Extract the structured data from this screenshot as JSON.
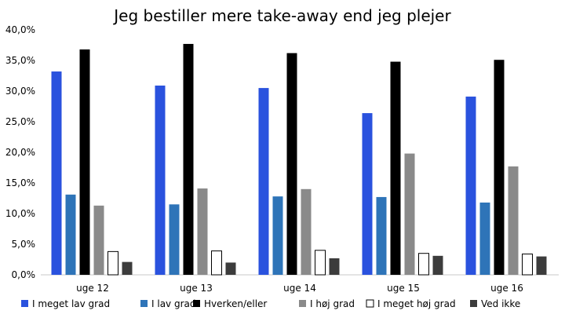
{
  "chart_data": {
    "type": "bar",
    "title": "Jeg bestiller mere take-away end jeg plejer",
    "xlabel": "",
    "ylabel": "",
    "ylim": [
      0,
      40
    ],
    "y_ticks": [
      "0,0%",
      "5,0%",
      "10,0%",
      "15,0%",
      "20,0%",
      "25,0%",
      "30,0%",
      "35,0%",
      "40,0%"
    ],
    "y_tick_values": [
      0,
      5,
      10,
      15,
      20,
      25,
      30,
      35,
      40
    ],
    "grid": false,
    "legend_position": "bottom",
    "categories": [
      "uge 12",
      "uge 13",
      "uge 14",
      "uge 15",
      "uge 16"
    ],
    "series": [
      {
        "name": "I meget lav grad",
        "color": "#2a52de",
        "values": [
          33.2,
          30.9,
          30.5,
          26.4,
          29.1
        ]
      },
      {
        "name": "I lav grad",
        "color": "#2e74b8",
        "values": [
          13.1,
          11.5,
          12.8,
          12.7,
          11.8
        ]
      },
      {
        "name": "Hverken/eller",
        "color": "#000000",
        "values": [
          36.8,
          37.7,
          36.2,
          34.8,
          35.1
        ]
      },
      {
        "name": "I høj grad",
        "color": "#8a8a8a",
        "values": [
          11.3,
          14.1,
          14.0,
          19.8,
          17.7
        ]
      },
      {
        "name": "I meget høj grad",
        "color": "#ffffff",
        "values": [
          3.8,
          3.9,
          4.0,
          3.5,
          3.4
        ]
      },
      {
        "name": "Ved ikke",
        "color": "#3c3c3c",
        "values": [
          2.1,
          2.0,
          2.7,
          3.1,
          3.0
        ]
      }
    ]
  }
}
